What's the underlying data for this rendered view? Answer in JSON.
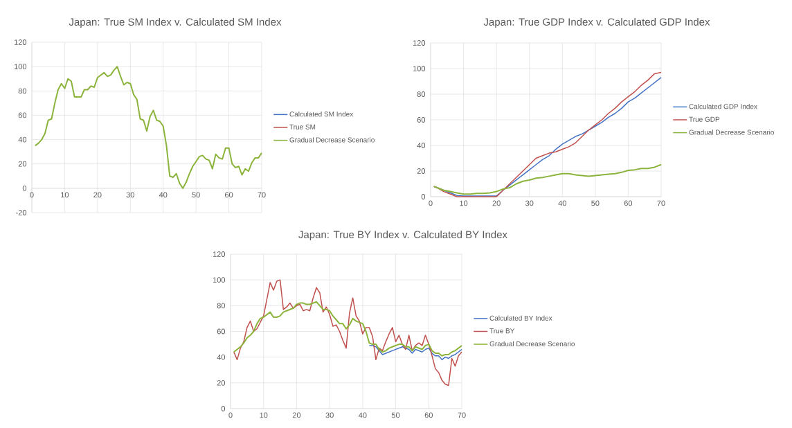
{
  "chart_data": [
    {
      "type": "line",
      "title": "Japan: True SM Index v. Calculated SM Index",
      "legend": "right",
      "grid": true,
      "xlim": [
        0,
        70
      ],
      "ylim": [
        -20,
        120
      ],
      "xticks": [
        0,
        10,
        20,
        30,
        40,
        50,
        60,
        70
      ],
      "yticks": [
        -20,
        0,
        20,
        40,
        60,
        80,
        100,
        120
      ],
      "x": [
        1,
        2,
        3,
        4,
        5,
        6,
        7,
        8,
        9,
        10,
        11,
        12,
        13,
        14,
        15,
        16,
        17,
        18,
        19,
        20,
        21,
        22,
        23,
        24,
        25,
        26,
        27,
        28,
        29,
        30,
        31,
        32,
        33,
        34,
        35,
        36,
        37,
        38,
        39,
        40,
        41,
        42,
        43,
        44,
        45,
        46,
        47,
        48,
        49,
        50,
        51,
        52,
        53,
        54,
        55,
        56,
        57,
        58,
        59,
        60,
        61,
        62,
        63,
        64,
        65,
        66,
        67,
        68,
        69,
        70
      ],
      "series": [
        {
          "name": "Calculated SM Index",
          "color": "#4472c4",
          "values": [
            null,
            null,
            null,
            null,
            null,
            null,
            null,
            null,
            null,
            null,
            null,
            null,
            null,
            null,
            null,
            null,
            null,
            null,
            null,
            null,
            null,
            null,
            null,
            null,
            null,
            null,
            null,
            null,
            null,
            null,
            null,
            null,
            null,
            null,
            null,
            null,
            null,
            null,
            null,
            null,
            null,
            null,
            null,
            null,
            null,
            null,
            null,
            null,
            null,
            null,
            null,
            null,
            null,
            null,
            null,
            null,
            null,
            null,
            null,
            null,
            null,
            null,
            null,
            null,
            null,
            null,
            null,
            null,
            null,
            null
          ]
        },
        {
          "name": "True SM",
          "color": "#c0504d",
          "values": [
            null,
            null,
            null,
            null,
            null,
            null,
            null,
            null,
            null,
            null,
            null,
            null,
            null,
            null,
            null,
            null,
            null,
            null,
            null,
            null,
            null,
            null,
            null,
            null,
            null,
            null,
            null,
            null,
            null,
            null,
            null,
            null,
            null,
            null,
            null,
            null,
            null,
            null,
            null,
            null,
            null,
            null,
            null,
            null,
            null,
            null,
            null,
            null,
            null,
            null,
            null,
            null,
            null,
            null,
            null,
            null,
            null,
            null,
            null,
            null,
            null,
            null,
            null,
            null,
            null,
            null,
            null,
            null,
            null,
            null
          ]
        },
        {
          "name": "Gradual Decrease Scenario",
          "color": "#8cb43c",
          "values": [
            35,
            37,
            40,
            45,
            56,
            57,
            70,
            81,
            86,
            82,
            90,
            88,
            75,
            75,
            75,
            81,
            81,
            84,
            83,
            91,
            93,
            95,
            92,
            93,
            97,
            100,
            92,
            85,
            87,
            86,
            77,
            73,
            57,
            56,
            47,
            59,
            64,
            56,
            55,
            51,
            35,
            10,
            9,
            12,
            4,
            0,
            5,
            12,
            18,
            22,
            26,
            27,
            24,
            23,
            16,
            28,
            25,
            24,
            33,
            33,
            20,
            17,
            18,
            11,
            16,
            14,
            21,
            25,
            25,
            29
          ]
        }
      ]
    },
    {
      "type": "line",
      "title": "Japan: True GDP Index v. Calculated GDP Index",
      "legend": "right",
      "grid": true,
      "xlim": [
        0,
        70
      ],
      "ylim": [
        0,
        120
      ],
      "xticks": [
        0,
        10,
        20,
        30,
        40,
        50,
        60,
        70
      ],
      "yticks": [
        0,
        20,
        40,
        60,
        80,
        100,
        120
      ],
      "x": [
        1,
        2,
        4,
        6,
        8,
        10,
        12,
        14,
        16,
        18,
        20,
        22,
        24,
        26,
        28,
        30,
        32,
        34,
        36,
        38,
        40,
        42,
        44,
        46,
        48,
        50,
        52,
        54,
        56,
        58,
        60,
        62,
        64,
        66,
        68,
        70
      ],
      "series": [
        {
          "name": "Calculated GDP Index",
          "color": "#4472c4",
          "values": [
            8,
            7,
            5,
            3,
            1,
            0.5,
            0.5,
            0.5,
            0.5,
            0.5,
            0.5,
            5,
            9,
            13,
            17,
            21,
            25,
            29,
            32,
            37,
            41,
            44,
            47,
            49,
            52,
            55,
            58,
            62,
            65,
            69,
            74,
            77,
            81,
            85,
            89,
            93
          ]
        },
        {
          "name": "True GDP",
          "color": "#c0504d",
          "values": [
            8,
            7,
            4,
            2,
            0,
            0,
            0,
            0,
            0,
            0,
            0,
            5,
            10,
            15,
            20,
            25,
            30,
            32,
            34,
            35,
            37,
            39,
            42,
            47,
            52,
            56,
            60,
            65,
            69,
            74,
            78,
            82,
            87,
            91,
            96,
            97
          ]
        },
        {
          "name": "Gradual Decrease Scenario",
          "color": "#8cb43c",
          "values": [
            8,
            7,
            5,
            4,
            3,
            2,
            2,
            2.5,
            2.5,
            3,
            4,
            6,
            7,
            10,
            12,
            13,
            14.5,
            15,
            16,
            17,
            18,
            18,
            17,
            16.5,
            16,
            16.5,
            17,
            17.5,
            18,
            19,
            20.5,
            21,
            22,
            22,
            23,
            25
          ]
        }
      ]
    },
    {
      "type": "line",
      "title": "Japan: True BY Index v. Calculated BY Index",
      "legend": "right",
      "grid": true,
      "xlim": [
        0,
        70
      ],
      "ylim": [
        0,
        120
      ],
      "xticks": [
        0,
        10,
        20,
        30,
        40,
        50,
        60,
        70
      ],
      "yticks": [
        0,
        20,
        40,
        60,
        80,
        100,
        120
      ],
      "x": [
        1,
        2,
        3,
        4,
        5,
        6,
        7,
        8,
        9,
        10,
        11,
        12,
        13,
        14,
        15,
        16,
        17,
        18,
        19,
        20,
        21,
        22,
        23,
        24,
        25,
        26,
        27,
        28,
        29,
        30,
        31,
        32,
        33,
        34,
        35,
        36,
        37,
        38,
        39,
        40,
        41,
        42,
        43,
        44,
        45,
        46,
        47,
        48,
        49,
        50,
        51,
        52,
        53,
        54,
        55,
        56,
        57,
        58,
        59,
        60,
        61,
        62,
        63,
        64,
        65,
        66,
        67,
        68,
        69,
        70
      ],
      "series": [
        {
          "name": "Calculated BY  Index",
          "color": "#4472c4",
          "values": [
            null,
            null,
            null,
            null,
            null,
            null,
            null,
            null,
            null,
            null,
            null,
            null,
            null,
            null,
            null,
            null,
            null,
            null,
            null,
            null,
            null,
            null,
            null,
            null,
            null,
            null,
            null,
            null,
            null,
            null,
            null,
            null,
            null,
            null,
            null,
            null,
            null,
            null,
            null,
            null,
            null,
            49,
            49,
            48,
            45,
            42,
            43,
            44,
            45,
            46,
            47,
            48,
            47,
            46,
            43,
            46,
            45,
            44,
            46,
            47,
            43,
            41,
            41,
            38,
            40,
            39,
            41,
            42,
            44,
            46
          ]
        },
        {
          "name": "True BY",
          "color": "#c0504d",
          "values": [
            44,
            38,
            47,
            52,
            63,
            68,
            60,
            62,
            67,
            72,
            85,
            98,
            92,
            99,
            100,
            77,
            79,
            82,
            78,
            80,
            81,
            76,
            77,
            76,
            86,
            94,
            90,
            75,
            79,
            73,
            64,
            65,
            60,
            53,
            47,
            74,
            86,
            72,
            68,
            58,
            63,
            63,
            56,
            38,
            47,
            45,
            52,
            58,
            63,
            52,
            57,
            50,
            46,
            57,
            45,
            49,
            51,
            49,
            57,
            50,
            41,
            31,
            28,
            22,
            19,
            18,
            39,
            33,
            41,
            44
          ]
        },
        {
          "name": "Gradual Decrease Scenario",
          "color": "#8cb43c",
          "values": [
            44,
            46,
            48,
            51,
            55,
            57,
            60,
            66,
            70,
            71,
            73,
            75,
            71,
            71,
            72,
            75,
            76,
            77,
            78,
            81,
            82,
            82,
            81,
            81,
            82,
            83,
            80,
            77,
            77,
            76,
            72,
            69,
            66,
            66,
            62,
            65,
            70,
            68,
            67,
            66,
            60,
            51,
            50,
            50,
            46,
            44,
            45,
            47,
            48,
            49,
            50,
            50,
            48,
            48,
            45,
            48,
            47,
            46,
            49,
            50,
            45,
            43,
            43,
            41,
            42,
            42,
            44,
            45,
            47,
            49
          ]
        }
      ]
    }
  ]
}
